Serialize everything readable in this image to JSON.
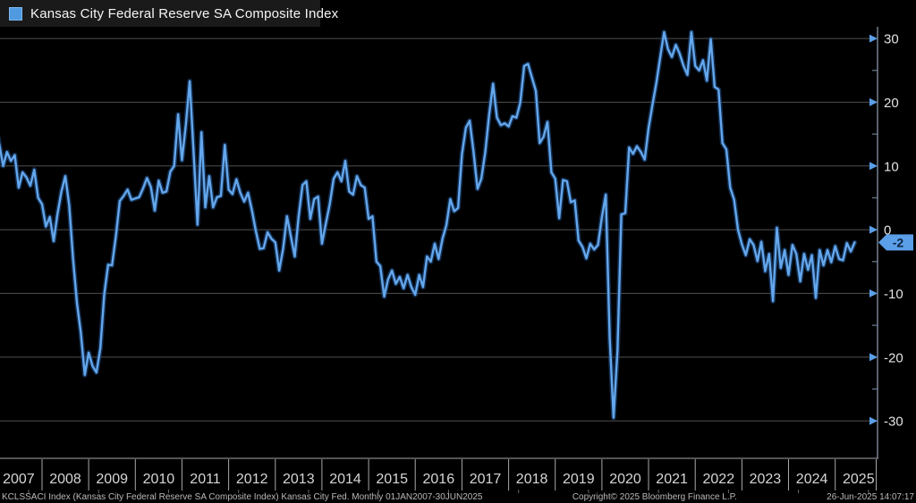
{
  "title_bar": {
    "legend_label": "Kansas City Federal Reserve SA Composite Index"
  },
  "footer": {
    "left": "KCLSSACI Index (Kansas City Federal Reserve SA Composite Index) Kansas City Fed. Monthly 01JAN2007-30JUN2025",
    "center": "Copyright© 2025 Bloomberg Finance L.P.",
    "right": "26-Jun-2025 14:07:17"
  },
  "colors": {
    "background": "#000000",
    "titlebar_bg": "#1a1a1a",
    "accent": "#5b9fe8",
    "line": "#64a7ec",
    "line_glow": "#1f4d86",
    "grid": "#4f4f4f",
    "axis": "#93a2b4",
    "minor_tick": "#6b7d94",
    "tick_text": "#e2e2e2",
    "year_text": "#d6d6d6",
    "separator": "#a8a8a8",
    "badge_text": "#0c2240",
    "footer_tick": "#6a6a6a"
  },
  "chart_data": {
    "type": "line",
    "title": "Kansas City Federal Reserve SA Composite Index",
    "xlabel": "",
    "ylabel": "",
    "frequency": "monthly",
    "x_start": "2007-01",
    "x_end": "2025-06",
    "x_year_labels": [
      "2007",
      "2008",
      "2009",
      "2010",
      "2011",
      "2012",
      "2013",
      "2014",
      "2015",
      "2016",
      "2017",
      "2018",
      "2019",
      "2020",
      "2021",
      "2022",
      "2023",
      "2024",
      "2025"
    ],
    "yticks": [
      30,
      20,
      10,
      0,
      -10,
      -20,
      -30
    ],
    "ylim": [
      -32,
      33
    ],
    "grid": true,
    "legend_position": "top-left",
    "last_value": -2,
    "last_value_label": "-2",
    "series": [
      {
        "name": "KCLSSACI Index",
        "color": "#64a7ec",
        "values": [
          16.5,
          13.5,
          10.0,
          12.2,
          10.8,
          11.7,
          6.6,
          9.0,
          8.2,
          6.9,
          9.4,
          5.0,
          4.0,
          0.5,
          2.0,
          -1.8,
          2.5,
          6.0,
          8.4,
          3.8,
          -4.6,
          -11.6,
          -16.2,
          -22.8,
          -19.3,
          -21.4,
          -22.4,
          -18.6,
          -10.2,
          -5.5,
          -5.6,
          -1.1,
          4.5,
          5.3,
          6.3,
          4.7,
          4.9,
          5.1,
          6.5,
          8.1,
          6.7,
          3.0,
          7.7,
          5.8,
          6.0,
          9.1,
          10.0,
          18.1,
          10.9,
          16.5,
          23.3,
          12.0,
          0.8,
          15.3,
          3.5,
          8.4,
          3.5,
          5.1,
          5.3,
          13.3,
          6.3,
          5.6,
          7.9,
          5.8,
          4.4,
          5.8,
          3.0,
          -0.2,
          -3.0,
          -2.9,
          -0.4,
          -1.4,
          -2.0,
          -6.4,
          -3.0,
          2.1,
          -1.0,
          -4.2,
          2.0,
          7.0,
          7.6,
          1.7,
          4.8,
          5.2,
          -2.2,
          1.0,
          4.0,
          8.0,
          9.0,
          7.6,
          10.8,
          6.0,
          5.5,
          8.4,
          7.0,
          6.6,
          1.7,
          2.1,
          -5.0,
          -5.7,
          -10.5,
          -7.8,
          -6.4,
          -8.5,
          -7.4,
          -9.2,
          -7.1,
          -9.0,
          -10.2,
          -7.1,
          -9.0,
          -4.2,
          -5.0,
          -2.2,
          -4.6,
          -1.4,
          0.7,
          4.8,
          2.9,
          3.4,
          11.8,
          16.0,
          17.1,
          12.2,
          6.4,
          8.0,
          12.2,
          18.0,
          22.9,
          17.6,
          16.4,
          16.7,
          16.2,
          17.8,
          17.6,
          19.9,
          25.7,
          26.0,
          23.9,
          21.8,
          13.6,
          14.6,
          16.9,
          9.0,
          8.0,
          1.8,
          7.8,
          7.6,
          4.3,
          4.6,
          -1.7,
          -2.7,
          -4.5,
          -2.2,
          -3.1,
          -2.4,
          2.0,
          5.5,
          -17.0,
          -29.5,
          -19.0,
          2.4,
          2.6,
          12.9,
          11.9,
          13.1,
          12.2,
          11.0,
          15.9,
          19.6,
          23.0,
          27.1,
          31.0,
          28.3,
          27.1,
          29.0,
          27.6,
          25.7,
          24.3,
          31.0,
          25.7,
          25.0,
          26.6,
          23.4,
          29.9,
          22.4,
          22.0,
          13.6,
          12.6,
          6.6,
          4.7,
          0.0,
          -2.3,
          -4.0,
          -1.5,
          -2.4,
          -4.9,
          -1.9,
          -6.5,
          -3.8,
          -11.2,
          0.3,
          -6.0,
          -3.2,
          -7.1,
          -2.4,
          -3.8,
          -8.1,
          -3.8,
          -6.3,
          -4.0,
          -10.7,
          -3.2,
          -5.6,
          -3.2,
          -5.1,
          -2.6,
          -4.6,
          -4.8,
          -2.1,
          -3.4,
          -2.0
        ]
      }
    ]
  }
}
